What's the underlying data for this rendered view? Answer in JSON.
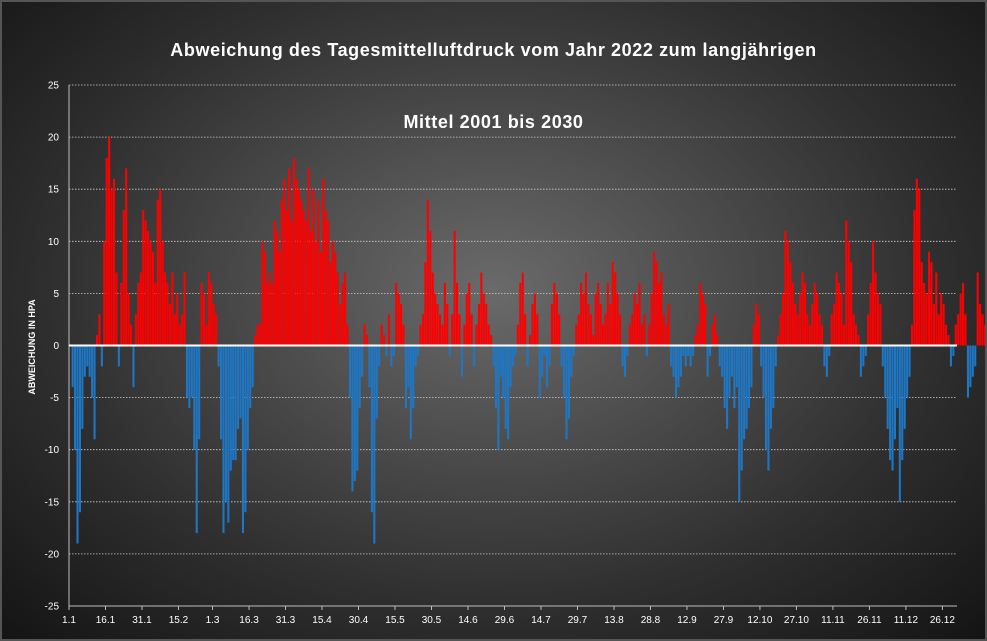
{
  "chart_data": {
    "type": "bar",
    "title_line1": "Abweichung  des Tagesmittelluftdruck  vom Jahr 2022 zum langjährigen",
    "title_line2": "Mittel 2001 bis 2030",
    "ylabel": "ABWEICHUNG IN HPA",
    "xlabel": "",
    "ylim": [
      -25,
      25
    ],
    "y_ticks": [
      -25,
      -20,
      -15,
      -10,
      -5,
      0,
      5,
      10,
      15,
      20,
      25
    ],
    "x_tick_labels": [
      "1.1",
      "16.1",
      "31.1",
      "15.2",
      "1.3",
      "16.3",
      "31.3",
      "15.4",
      "30.4",
      "15.5",
      "30.5",
      "14.6",
      "29.6",
      "14.7",
      "29.7",
      "13.8",
      "28.8",
      "12.9",
      "27.9",
      "12.10",
      "27.10",
      "11.11",
      "26.11",
      "11.12",
      "26.12"
    ],
    "x_tick_day_index": [
      0,
      15,
      30,
      45,
      59,
      74,
      89,
      104,
      119,
      134,
      149,
      164,
      179,
      194,
      209,
      224,
      239,
      254,
      269,
      284,
      299,
      314,
      329,
      344,
      359
    ],
    "grid": true,
    "legend": "none",
    "colors": {
      "positive": "#ff0000",
      "negative": "#1f77c4",
      "zero_line": "#ffffff"
    },
    "daily_values": [
      0,
      -4,
      -10,
      -19,
      -16,
      -8,
      -3,
      -2,
      -3,
      -5,
      -9,
      1,
      3,
      -2,
      10,
      18,
      20,
      15,
      16,
      7,
      -2,
      6,
      13,
      17,
      5,
      2,
      -4,
      3,
      6,
      7,
      13,
      12,
      11,
      10,
      9,
      6,
      14,
      15,
      10,
      7,
      6,
      4,
      7,
      3,
      5,
      2,
      3,
      7,
      -5,
      -6,
      -5,
      -10,
      -18,
      -9,
      6,
      5,
      2,
      7,
      6,
      4,
      3,
      -2,
      -9,
      -18,
      -15,
      -17,
      -12,
      -11,
      -11,
      -8,
      -7,
      -18,
      -16,
      -10,
      -6,
      -4,
      1,
      2,
      2,
      10,
      9,
      6,
      7,
      6,
      12,
      11,
      9,
      14,
      16,
      13,
      17,
      12,
      18,
      16,
      15,
      14,
      13,
      12,
      17,
      11,
      15,
      10,
      14,
      9,
      16,
      13,
      12,
      8,
      10,
      9,
      7,
      4,
      6,
      7,
      2,
      -5,
      -14,
      -13,
      -12,
      -6,
      -3,
      2,
      1,
      -4,
      -16,
      -19,
      -7,
      -2,
      2,
      1,
      -1,
      3,
      -2,
      -1,
      6,
      5,
      4,
      2,
      -6,
      -4,
      -9,
      -6,
      -2,
      -1,
      2,
      3,
      8,
      14,
      11,
      7,
      5,
      4,
      3,
      2,
      6,
      4,
      -1,
      3,
      11,
      6,
      3,
      -3,
      2,
      5,
      6,
      3,
      -2,
      2,
      4,
      7,
      5,
      4,
      2,
      1,
      -2,
      -6,
      -10,
      -3,
      -5,
      -8,
      -9,
      -4,
      -2,
      -1,
      2,
      6,
      7,
      3,
      -2,
      1,
      4,
      5,
      3,
      -5,
      -3,
      -1,
      -4,
      -2,
      4,
      6,
      5,
      3,
      -2,
      -5,
      -9,
      -7,
      -3,
      -1,
      2,
      3,
      6,
      5,
      7,
      4,
      3,
      1,
      5,
      6,
      4,
      2,
      3,
      6,
      4,
      8,
      7,
      5,
      3,
      -2,
      -3,
      -1,
      2,
      3,
      5,
      4,
      6,
      2,
      3,
      -1,
      2,
      5,
      9,
      8,
      6,
      7,
      3,
      2,
      4,
      -2,
      -3,
      -5,
      -4,
      -3,
      -1,
      -2,
      -1,
      -2,
      -1,
      1,
      2,
      6,
      5,
      4,
      -3,
      -1,
      2,
      3,
      1,
      -2,
      -3,
      -6,
      -8,
      -5,
      -3,
      -6,
      -4,
      -15,
      -12,
      -9,
      -8,
      -6,
      -4,
      2,
      4,
      3,
      -2,
      -5,
      -10,
      -12,
      -8,
      -6,
      -2,
      1,
      3,
      5,
      11,
      10,
      8,
      6,
      4,
      3,
      5,
      7,
      6,
      3,
      2,
      4,
      6,
      5,
      3,
      2,
      -2,
      -3,
      -1,
      3,
      4,
      7,
      6,
      5,
      2,
      12,
      10,
      8,
      3,
      2,
      1,
      -3,
      -2,
      -1,
      3,
      6,
      10,
      7,
      5,
      4,
      -2,
      -5,
      -8,
      -11,
      -12,
      -9,
      -6,
      -15,
      -11,
      -8,
      -5,
      -3,
      2,
      13,
      16,
      15,
      8,
      6,
      5,
      9,
      8,
      4,
      7,
      3,
      5,
      4,
      2,
      1,
      -2,
      -1,
      2,
      3,
      5,
      6,
      3,
      -5,
      -4,
      -3,
      -2,
      7,
      4,
      3,
      2,
      -1,
      -4,
      2,
      5,
      3,
      2,
      -3,
      2,
      1,
      -2
    ]
  }
}
